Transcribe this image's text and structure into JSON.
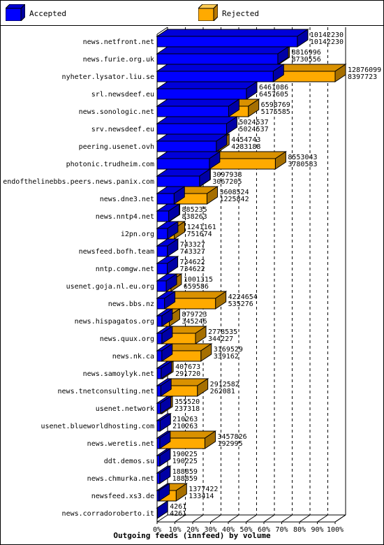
{
  "legend": {
    "accepted_label": "Accepted",
    "rejected_label": "Rejected",
    "accepted_color": "#0000ff",
    "rejected_color": "#ffaa00"
  },
  "chart_data": {
    "type": "bar",
    "orientation": "horizontal",
    "stacked": false,
    "title": "Outgoing feeds (innfeed) by volume",
    "x_tick_labels": [
      "0%",
      "10%",
      "20%",
      "30%",
      "40%",
      "50%",
      "60%",
      "70%",
      "80%",
      "90%",
      "100%"
    ],
    "xlim": [
      0,
      100
    ],
    "grid": true,
    "legend_position": "top",
    "categories": [
      "news.netfront.net",
      "news.furie.org.uk",
      "nyheter.lysator.liu.se",
      "srl.newsdeef.eu",
      "news.sonologic.net",
      "srv.newsdeef.eu",
      "peering.usenet.ovh",
      "photonic.trudheim.com",
      "endofthelinebbs.peers.news.panix.com",
      "news.dne3.net",
      "news.nntp4.net",
      "i2pn.org",
      "newsfeed.bofh.team",
      "nntp.comgw.net",
      "usenet.goja.nl.eu.org",
      "news.bbs.nz",
      "news.hispagatos.org",
      "news.quux.org",
      "news.nk.ca",
      "news.samoylyk.net",
      "news.tnetconsulting.net",
      "usenet.network",
      "usenet.blueworldhosting.com",
      "news.weretis.net",
      "ddt.demos.su",
      "news.chmurka.net",
      "newsfeed.xs3.de",
      "news.corradoroberto.it"
    ],
    "series": [
      {
        "name": "Accepted",
        "values": [
          10142230,
          8730556,
          8397723,
          6457605,
          5175585,
          5024537,
          4283188,
          3780583,
          3067205,
          1225842,
          838263,
          751674,
          743327,
          734622,
          659586,
          535276,
          345246,
          344227,
          339162,
          291720,
          262081,
          237318,
          210263,
          192995,
          190225,
          188859,
          133414,
          4261
        ]
      },
      {
        "name": "Rejected",
        "values": [
          10142230,
          8816996,
          12876099,
          6461086,
          6598769,
          5024537,
          4454743,
          8553043,
          3097938,
          3608524,
          885235,
          1241161,
          743327,
          734622,
          1001315,
          4224654,
          879723,
          2778535,
          3169529,
          407673,
          2912582,
          355520,
          210263,
          3457826,
          190225,
          188859,
          1377422,
          4261
        ]
      }
    ]
  }
}
